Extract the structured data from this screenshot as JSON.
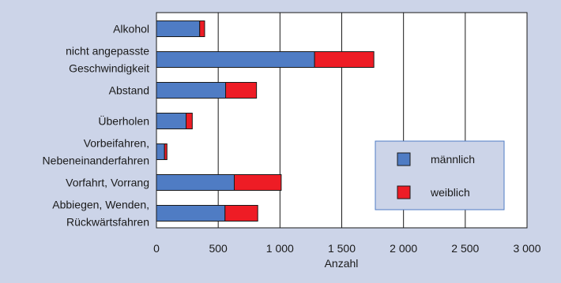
{
  "chart_data": {
    "type": "bar",
    "orientation": "horizontal",
    "stacked": true,
    "categories": [
      [
        "Alkohol"
      ],
      [
        "nicht angepasste",
        "Geschwindigkeit"
      ],
      [
        "Abstand"
      ],
      [
        "Überholen"
      ],
      [
        "Vorbeifahren,",
        "Nebeneinanderfahren"
      ],
      [
        "Vorfahrt, Vorrang"
      ],
      [
        "Abbiegen, Wenden,",
        "Rückwärtsfahren"
      ]
    ],
    "series": [
      {
        "name": "männlich",
        "color": "#4f7cc4",
        "values": [
          350,
          1280,
          560,
          240,
          65,
          630,
          555
        ]
      },
      {
        "name": "weiblich",
        "color": "#ee1c25",
        "values": [
          40,
          480,
          250,
          50,
          20,
          380,
          265
        ]
      }
    ],
    "xlabel": "Anzahl",
    "xlim": [
      0,
      3000
    ],
    "xticks": [
      0,
      500,
      1000,
      1500,
      2000,
      2500,
      3000
    ],
    "xtick_labels": [
      "0",
      "500",
      "1 000",
      "1 500",
      "2 000",
      "2 500",
      "3 000"
    ],
    "grid": "vertical",
    "legend": "right",
    "plot_background": "#ffffff",
    "page_background": "#ccd4e8"
  }
}
